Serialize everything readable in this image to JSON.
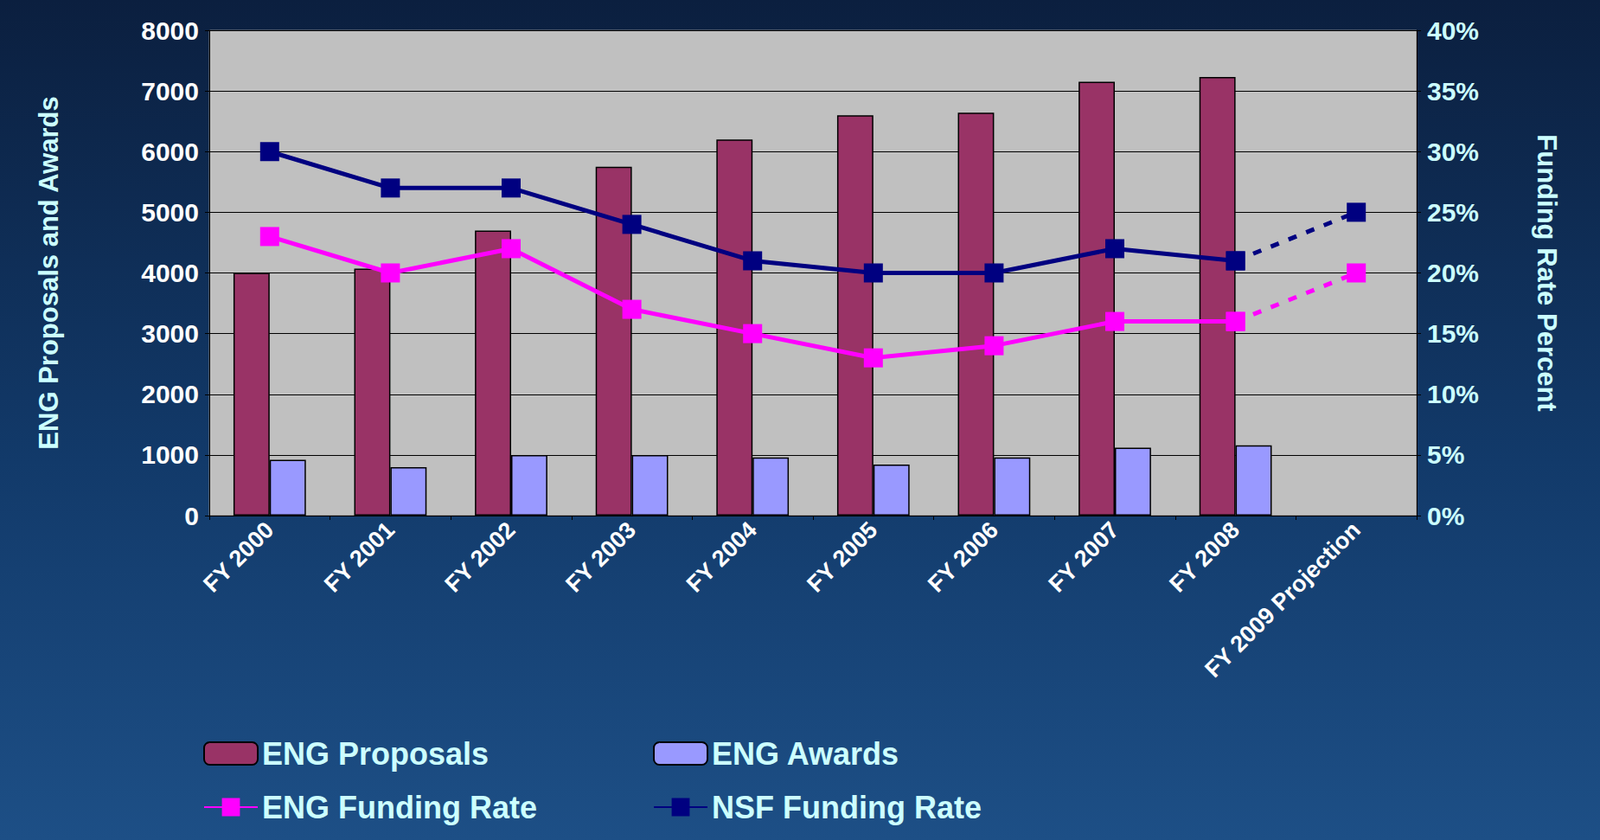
{
  "chart_data": {
    "type": "bar",
    "categories": [
      "FY 2000",
      "FY 2001",
      "FY 2002",
      "FY 2003",
      "FY 2004",
      "FY 2005",
      "FY 2006",
      "FY 2007",
      "FY 2008",
      "FY 2009 Projection"
    ],
    "y_label": "ENG Proposals and Awards",
    "y2_label": "Funding Rate Percent",
    "ylim": [
      0,
      8000
    ],
    "yticks": [
      0,
      1000,
      2000,
      3000,
      4000,
      5000,
      6000,
      7000,
      8000
    ],
    "y2lim": [
      0,
      40
    ],
    "y2ticks": [
      {
        "value": 0,
        "label": "0%"
      },
      {
        "value": 5,
        "label": "5%"
      },
      {
        "value": 10,
        "label": "10%"
      },
      {
        "value": 15,
        "label": "15%"
      },
      {
        "value": 20,
        "label": "20%"
      },
      {
        "value": 25,
        "label": "25%"
      },
      {
        "value": 30,
        "label": "30%"
      },
      {
        "value": 35,
        "label": "35%"
      },
      {
        "value": 40,
        "label": "40%"
      }
    ],
    "grid": true,
    "legend": "bottom-left",
    "series": [
      {
        "name": "ENG Proposals",
        "type": "bar",
        "color": "#993366",
        "values": [
          4000,
          4070,
          4700,
          5750,
          6200,
          6600,
          6640,
          7150,
          7230,
          null
        ]
      },
      {
        "name": "ENG Awards",
        "type": "bar",
        "color": "#9999ff",
        "values": [
          920,
          800,
          1000,
          1000,
          960,
          840,
          960,
          1120,
          1160,
          null
        ]
      },
      {
        "name": "ENG Funding Rate",
        "type": "line",
        "axis": "y2",
        "color": "#ff00ff",
        "marker": "square",
        "line_style": "solid",
        "values": [
          23,
          20,
          22,
          17,
          15,
          13,
          14,
          16,
          16,
          null
        ]
      },
      {
        "name": "NSF Funding Rate",
        "type": "line",
        "axis": "y2",
        "color": "#000080",
        "marker": "square",
        "line_style": "solid",
        "values": [
          30,
          27,
          27,
          24,
          21,
          20,
          20,
          22,
          21,
          null
        ]
      },
      {
        "name": "ENG Funding Rate",
        "type": "line",
        "axis": "y2",
        "color": "#ff00ff",
        "marker": "square",
        "line_style": "dashed",
        "values": [
          null,
          null,
          null,
          null,
          null,
          null,
          null,
          null,
          16,
          20
        ]
      },
      {
        "name": "NSF Funding Rate",
        "type": "line",
        "axis": "y2",
        "color": "#000080",
        "marker": "square",
        "line_style": "dashed",
        "values": [
          null,
          null,
          null,
          null,
          null,
          null,
          null,
          null,
          21,
          25
        ]
      }
    ]
  }
}
